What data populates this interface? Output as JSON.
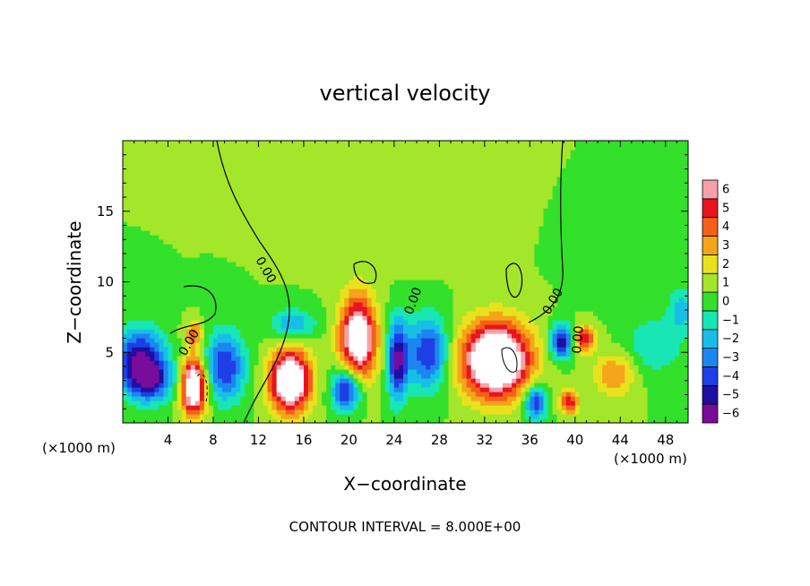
{
  "chart_data": {
    "type": "heatmap",
    "title": "vertical velocity",
    "xlabel": "X−coordinate",
    "ylabel": "Z−coordinate",
    "x_unit_label": "(×1000 m)",
    "y_unit_label": "(×1000 m)",
    "xlim": [
      0,
      50
    ],
    "ylim": [
      0,
      20
    ],
    "x_ticks": [
      4,
      8,
      12,
      16,
      20,
      24,
      28,
      32,
      36,
      40,
      44,
      48
    ],
    "x_tick_labels": [
      "4",
      "8",
      "12",
      "16",
      "20",
      "24",
      "28",
      "32",
      "36",
      "40",
      "44",
      "48"
    ],
    "y_ticks": [
      5,
      10,
      15
    ],
    "y_tick_labels": [
      "5",
      "10",
      "15"
    ],
    "colorbar": {
      "levels": [
        -6,
        -5,
        -4,
        -3,
        -2,
        -1,
        0,
        1,
        2,
        3,
        4,
        5,
        6
      ],
      "labels": [
        "−6",
        "−5",
        "−4",
        "−3",
        "−2",
        "−1",
        "0",
        "1",
        "2",
        "3",
        "4",
        "5",
        "6"
      ],
      "colors": [
        "#7a0c9b",
        "#1e0fa0",
        "#1f3fe6",
        "#1c86f0",
        "#17bfe8",
        "#18e6b4",
        "#33e02b",
        "#a3e62a",
        "#e8e21c",
        "#f5a51a",
        "#f56018",
        "#e8141e",
        "#f7a0a8"
      ]
    },
    "background_value": 0.5,
    "contour_labels": [
      "0.00",
      "0.00",
      "0.00",
      "0.00",
      "0.00"
    ],
    "cells": [
      {
        "x": 1.5,
        "z": 4.5,
        "rx": 2.2,
        "rz": 2.2,
        "w": -6
      },
      {
        "x": 2.5,
        "z": 3.0,
        "rx": 2.0,
        "rz": 1.5,
        "w": -4
      },
      {
        "x": 6.3,
        "z": 2.6,
        "rx": 1.1,
        "rz": 2.0,
        "w": 9
      },
      {
        "x": 6.3,
        "z": 6.3,
        "rx": 0.8,
        "rz": 0.9,
        "w": 3.5
      },
      {
        "x": 9.0,
        "z": 4.0,
        "rx": 1.8,
        "rz": 2.4,
        "w": -5
      },
      {
        "x": 14.8,
        "z": 3.0,
        "rx": 1.8,
        "rz": 2.2,
        "w": 9
      },
      {
        "x": 15.0,
        "z": 7.0,
        "rx": 2.0,
        "rz": 1.1,
        "w": -3
      },
      {
        "x": 19.8,
        "z": 2.4,
        "rx": 1.3,
        "rz": 1.5,
        "w": -6
      },
      {
        "x": 20.8,
        "z": 6.0,
        "rx": 1.6,
        "rz": 3.0,
        "w": 8
      },
      {
        "x": 24.3,
        "z": 4.5,
        "rx": 0.9,
        "rz": 2.8,
        "w": -6
      },
      {
        "x": 27.0,
        "z": 5.0,
        "rx": 1.8,
        "rz": 2.6,
        "w": -5
      },
      {
        "x": 33.0,
        "z": 4.5,
        "rx": 3.0,
        "rz": 2.6,
        "w": 10
      },
      {
        "x": 36.5,
        "z": 1.5,
        "rx": 1.0,
        "rz": 1.3,
        "w": -5
      },
      {
        "x": 38.8,
        "z": 5.8,
        "rx": 1.0,
        "rz": 1.2,
        "w": -6
      },
      {
        "x": 39.5,
        "z": 1.5,
        "rx": 0.8,
        "rz": 0.8,
        "w": 5
      },
      {
        "x": 40.8,
        "z": 6.0,
        "rx": 1.0,
        "rz": 0.9,
        "w": 5
      },
      {
        "x": 43.5,
        "z": 3.5,
        "rx": 1.8,
        "rz": 1.5,
        "w": 3
      },
      {
        "x": 47.0,
        "z": 5.5,
        "rx": 2.5,
        "rz": 2.0,
        "w": -2
      },
      {
        "x": 49.5,
        "z": 8.0,
        "rx": 1.2,
        "rz": 1.5,
        "w": -2.5
      },
      {
        "x": 25.0,
        "z": 15.0,
        "rx": 6.0,
        "rz": 4.0,
        "w": 0.4
      },
      {
        "x": 45.0,
        "z": 12.0,
        "rx": 4.0,
        "rz": 3.0,
        "w": -0.6
      }
    ],
    "footer": "CONTOUR INTERVAL = 8.000E+00"
  }
}
